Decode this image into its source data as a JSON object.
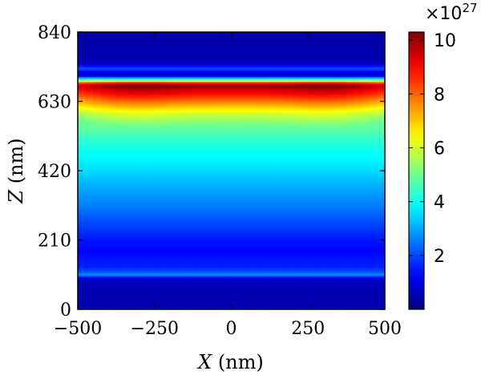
{
  "chart_data": {
    "type": "heatmap",
    "title": "",
    "xlabel": {
      "var": "X",
      "unit": " (nm)"
    },
    "ylabel": {
      "var": "Z",
      "unit": " (nm)"
    },
    "x_range": [
      -500,
      500
    ],
    "y_range": [
      0,
      840
    ],
    "x_ticks": [
      -500,
      -250,
      0,
      250,
      500
    ],
    "x_tick_labels": [
      "−500",
      "−250",
      "0",
      "250",
      "500"
    ],
    "y_ticks": [
      0,
      210,
      420,
      630,
      840
    ],
    "y_tick_labels": [
      "0",
      "210",
      "420",
      "630",
      "840"
    ],
    "colormap": "jet",
    "colorbar": {
      "range": [
        0,
        10.3
      ],
      "ticks": [
        2,
        4,
        6,
        8,
        10
      ],
      "tick_labels": [
        "2",
        "4",
        "6",
        "8",
        "10"
      ],
      "multiplier": {
        "base": "×10",
        "exponent": "27"
      }
    },
    "z_profile": {
      "z": [
        0,
        50,
        90,
        100,
        105,
        112,
        130,
        180,
        210,
        260,
        320,
        380,
        420,
        470,
        520,
        560,
        590,
        610,
        630,
        650,
        665,
        675,
        680,
        690,
        695,
        700,
        708,
        718,
        730,
        745,
        760,
        800,
        840
      ],
      "values": [
        0.5,
        0.5,
        0.6,
        1.6,
        3.0,
        2.2,
        1.6,
        1.3,
        1.5,
        2.0,
        2.6,
        3.1,
        3.5,
        3.9,
        4.4,
        5.0,
        5.8,
        6.7,
        7.7,
        8.7,
        9.4,
        9.9,
        10.1,
        8.0,
        5.0,
        3.6,
        1.2,
        0.8,
        2.2,
        0.7,
        0.5,
        0.4,
        0.4
      ]
    },
    "x_profile_note": "edges (|x|~500) slightly lower; max near |x|~300"
  }
}
